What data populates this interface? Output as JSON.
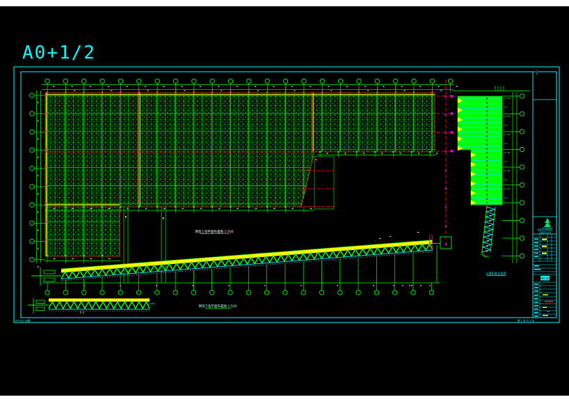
{
  "title": "A0+1/2",
  "colors": {
    "background": "#000000",
    "frame": "#00ffff",
    "grid_green": "#00ff00",
    "hatch_green": "#00b000",
    "accent_yellow": "#ffff00",
    "boundary_red": "#ff0000",
    "node_magenta": "#ff00ff",
    "text_white": "#ffffff",
    "margin_strip": "#ffffff"
  },
  "axes": {
    "top_bubbles": 23,
    "left_bubbles": 10,
    "right_bubbles": 10,
    "bottom_bubbles": 22
  },
  "labels": {
    "upper_plan": "网架上弦平面布置图 1:500",
    "lower_plan": "网架下弦平面布置图 1:500",
    "section_mark": "1-1",
    "side_elevation": "山墙桁架立面图",
    "frame_note_left": "A0+1/2 布图",
    "frame_note_right": "第 1 张 共 1 张",
    "zone_mark": "E"
  },
  "titleblock": {
    "company_line1": "建筑设计研究院",
    "company_line2": "工程设计证书",
    "project": "网架工程",
    "drawing_no": "结施-01"
  }
}
